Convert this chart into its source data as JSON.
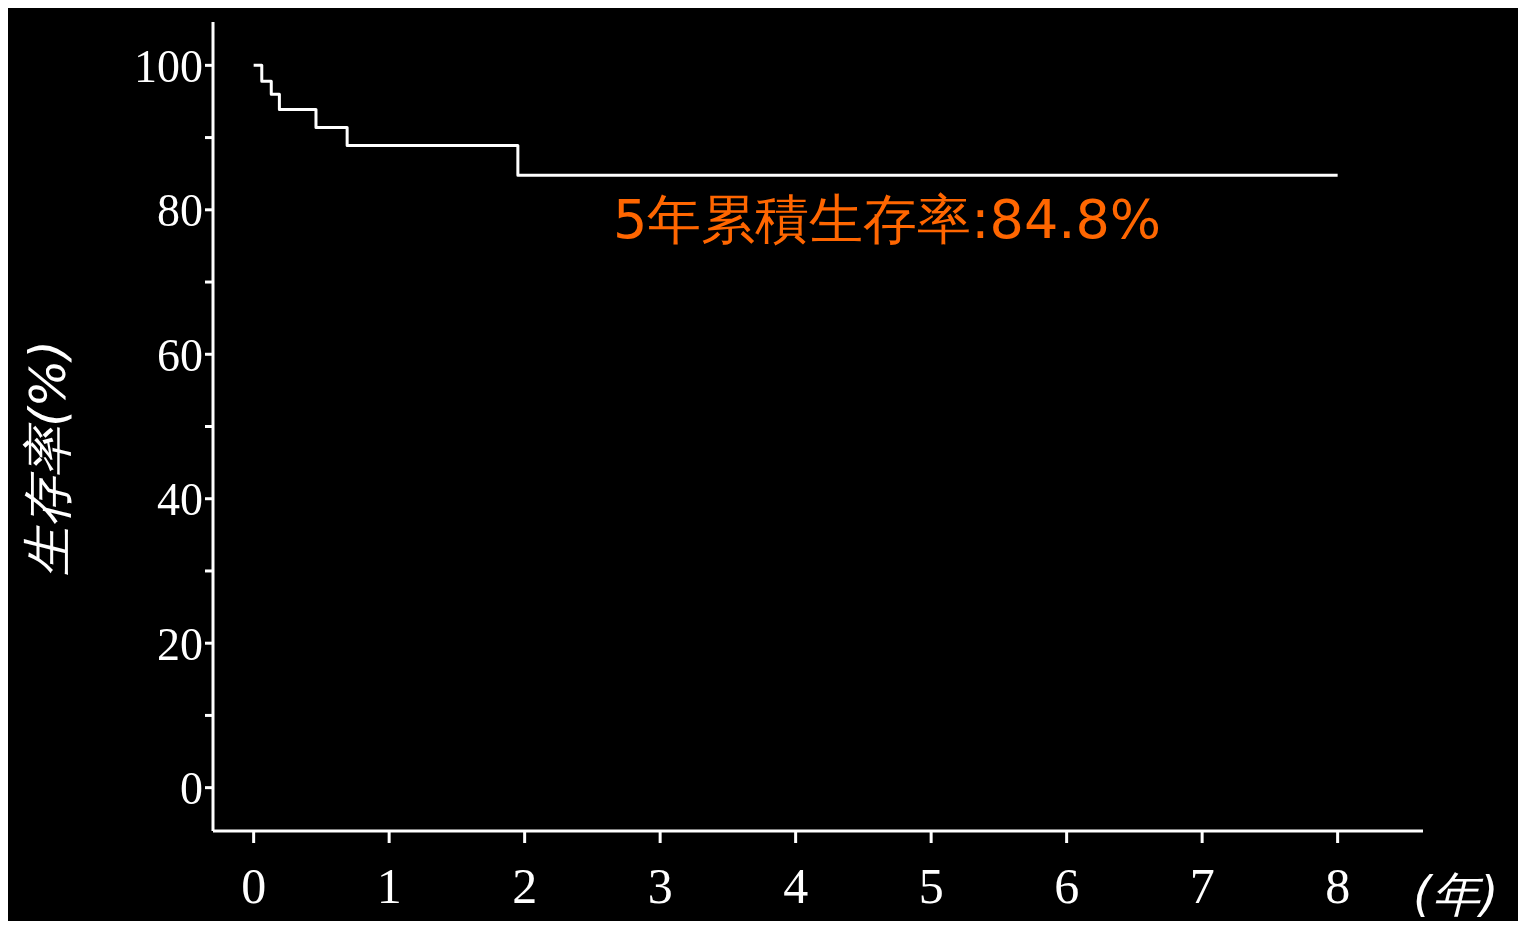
{
  "chart_data": {
    "type": "step",
    "xlabel": "(年)",
    "ylabel": "生存率(%)",
    "x": [
      0,
      0.06,
      0.13,
      0.19,
      0.46,
      0.69,
      1.95,
      8
    ],
    "series": [
      {
        "color": "#ffffff",
        "values": [
          100,
          97.8,
          96.0,
          93.9,
          91.4,
          88.9,
          84.8,
          84.8
        ]
      }
    ],
    "xlim": [
      -0.3,
      8.63
    ],
    "xticks": [
      0,
      1,
      2,
      3,
      4,
      5,
      6,
      7,
      8
    ],
    "ylim": [
      -6,
      106
    ],
    "yticks": [
      0,
      {
        "value": 10,
        "label": null
      },
      20,
      {
        "value": 30,
        "label": null
      },
      40,
      {
        "value": 50,
        "label": null
      },
      60,
      {
        "value": 70,
        "label": null
      },
      80,
      {
        "value": 90,
        "label": null
      },
      100
    ],
    "annotations": [
      "5年累積生存率:84.8%"
    ],
    "grid": false,
    "legend": false,
    "marker": "none",
    "line_style": "solid"
  }
}
